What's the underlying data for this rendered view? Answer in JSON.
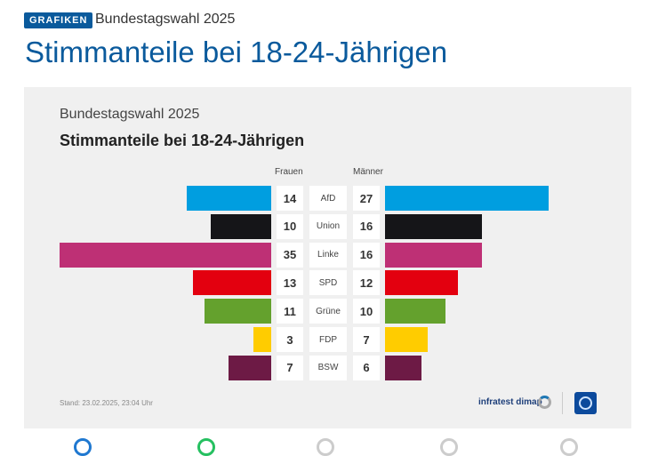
{
  "header": {
    "badge": "GRAFIKEN",
    "kicker": "Bundestagswahl 2025",
    "title": "Stimmanteile bei 18-24-Jährigen"
  },
  "chart": {
    "title_small": "Bundestagswahl 2025",
    "title": "Stimmanteile bei 18-24-Jährigen",
    "left_label": "Frauen",
    "right_label": "Männer",
    "footer": "Stand: 23.02.2025, 23:04 Uhr",
    "source": "infratest dimap"
  },
  "chart_data": {
    "type": "bar",
    "orientation": "horizontal-butterfly",
    "categories": [
      "AfD",
      "Union",
      "Linke",
      "SPD",
      "Grüne",
      "FDP",
      "BSW"
    ],
    "series": [
      {
        "name": "Frauen",
        "values": [
          14,
          10,
          35,
          13,
          11,
          3,
          7
        ]
      },
      {
        "name": "Männer",
        "values": [
          27,
          16,
          16,
          12,
          10,
          7,
          6
        ]
      }
    ],
    "colors": [
      "#009ee0",
      "#151518",
      "#be3075",
      "#e3000f",
      "#64a12d",
      "#ffcc00",
      "#6d1a45"
    ]
  }
}
